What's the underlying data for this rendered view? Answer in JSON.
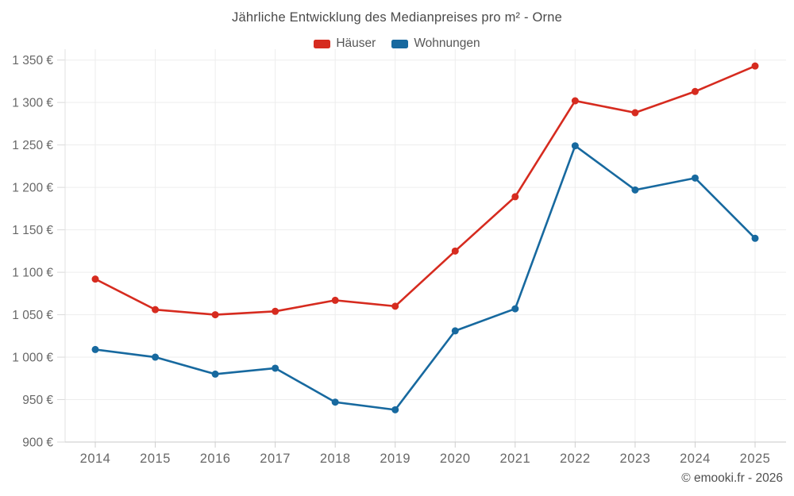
{
  "footer": {
    "credit": "© emooki.fr - 2026"
  },
  "chart_data": {
    "type": "line",
    "title": "Jährliche Entwicklung des Medianpreises pro m² - Orne",
    "x": [
      "2014",
      "2015",
      "2016",
      "2017",
      "2018",
      "2019",
      "2020",
      "2021",
      "2022",
      "2023",
      "2024",
      "2025"
    ],
    "series": [
      {
        "name": "Häuser",
        "color": "#d62b1f",
        "values": [
          1092,
          1056,
          1050,
          1054,
          1067,
          1060,
          1125,
          1189,
          1302,
          1288,
          1313,
          1343
        ]
      },
      {
        "name": "Wohnungen",
        "color": "#17699f",
        "values": [
          1009,
          1000,
          980,
          987,
          947,
          938,
          1031,
          1057,
          1249,
          1197,
          1211,
          1140
        ]
      }
    ],
    "ylabel": "",
    "xlabel": "",
    "ylim": [
      900,
      1350
    ],
    "y_ticks": [
      900,
      950,
      1000,
      1050,
      1100,
      1150,
      1200,
      1250,
      1300,
      1350
    ],
    "y_tick_labels": [
      "900 €",
      "950 €",
      "1 000 €",
      "1 050 €",
      "1 100 €",
      "1 150 €",
      "1 200 €",
      "1 250 €",
      "1 300 €",
      "1 350 €"
    ],
    "grid": true,
    "legend_position": "top"
  }
}
